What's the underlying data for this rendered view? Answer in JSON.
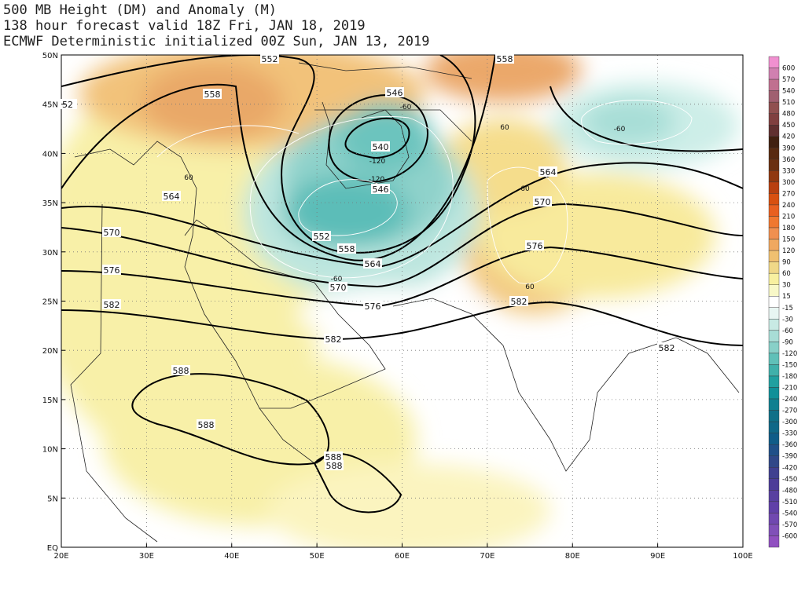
{
  "title": [
    "500 MB Height (DM) and Anomaly (M)",
    "138 hour forecast valid 18Z Fri, JAN 18, 2019",
    "ECMWF Deterministic initialized 00Z Sun, JAN 13, 2019"
  ],
  "lat_labels": [
    "50N",
    "45N",
    "40N",
    "35N",
    "30N",
    "25N",
    "20N",
    "15N",
    "10N",
    "5N",
    "EQ"
  ],
  "lon_labels": [
    "20E",
    "30E",
    "40E",
    "50E",
    "60E",
    "70E",
    "80E",
    "90E",
    "100E"
  ],
  "colorbar_labels": [
    "600",
    "570",
    "540",
    "510",
    "480",
    "450",
    "420",
    "390",
    "360",
    "330",
    "300",
    "270",
    "240",
    "210",
    "180",
    "150",
    "120",
    "90",
    "60",
    "30",
    "15",
    "-15",
    "-30",
    "-60",
    "-90",
    "-120",
    "-150",
    "-180",
    "-210",
    "-240",
    "-270",
    "-300",
    "-330",
    "-360",
    "-390",
    "-420",
    "-450",
    "-480",
    "-510",
    "-540",
    "-570",
    "-600"
  ],
  "height_labels": [
    "552",
    "558",
    "558",
    "546",
    "540",
    "546",
    "552",
    "558",
    "564",
    "564",
    "564",
    "570",
    "570",
    "570",
    "576",
    "576",
    "576",
    "582",
    "582",
    "582",
    "582",
    "588",
    "588",
    "588",
    "588",
    "52"
  ],
  "anomaly_labels": [
    "-60",
    "-120",
    "-120",
    "60",
    "60",
    "60",
    "60",
    "-60",
    "-60"
  ]
}
